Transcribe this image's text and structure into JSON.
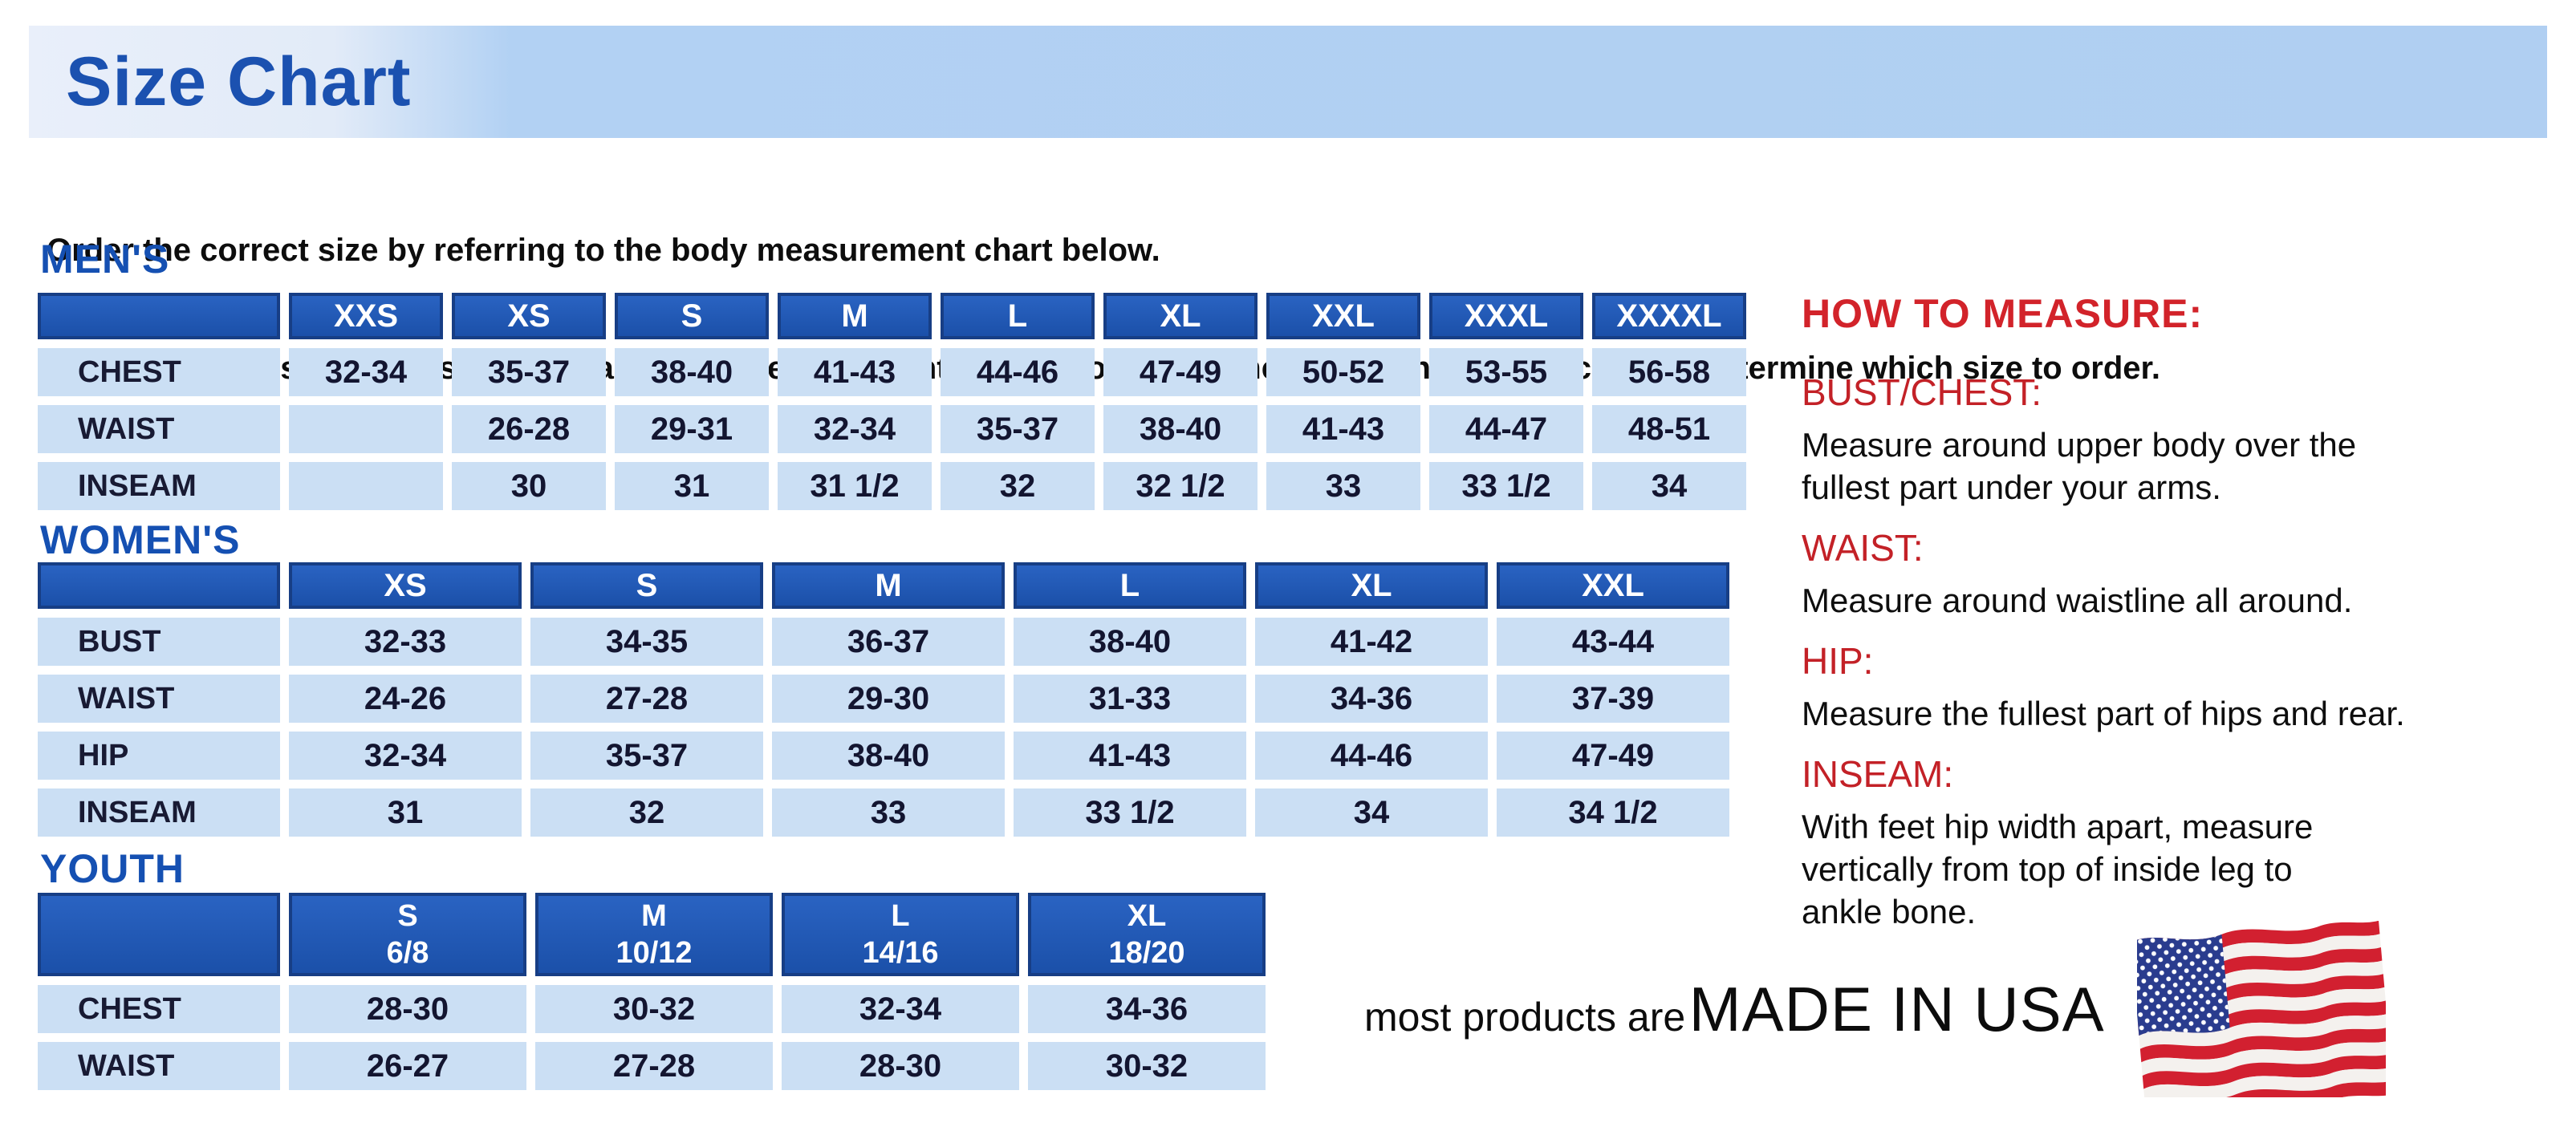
{
  "banner": {
    "title": "Size Chart"
  },
  "intro": {
    "line1": "Order the correct size by referring to the body measurement chart below.",
    "line2": "Measurements shown on size chart are body measurements.  Find your body measurements on the chart to determine which size to order."
  },
  "tables": {
    "mens": {
      "section_label": "MEN'S",
      "columns": [
        "XXS",
        "XS",
        "S",
        "M",
        "L",
        "XL",
        "XXL",
        "XXXL",
        "XXXXL"
      ],
      "rows": [
        {
          "label": "CHEST",
          "values": [
            "32-34",
            "35-37",
            "38-40",
            "41-43",
            "44-46",
            "47-49",
            "50-52",
            "53-55",
            "56-58"
          ]
        },
        {
          "label": "WAIST",
          "values": [
            "",
            "26-28",
            "29-31",
            "32-34",
            "35-37",
            "38-40",
            "41-43",
            "44-47",
            "48-51"
          ]
        },
        {
          "label": "INSEAM",
          "values": [
            "",
            "30",
            "31",
            "31 1/2",
            "32",
            "32 1/2",
            "33",
            "33 1/2",
            "34"
          ]
        }
      ]
    },
    "womens": {
      "section_label": "WOMEN'S",
      "columns": [
        "XS",
        "S",
        "M",
        "L",
        "XL",
        "XXL"
      ],
      "rows": [
        {
          "label": "BUST",
          "values": [
            "32-33",
            "34-35",
            "36-37",
            "38-40",
            "41-42",
            "43-44"
          ]
        },
        {
          "label": "WAIST",
          "values": [
            "24-26",
            "27-28",
            "29-30",
            "31-33",
            "34-36",
            "37-39"
          ]
        },
        {
          "label": "HIP",
          "values": [
            "32-34",
            "35-37",
            "38-40",
            "41-43",
            "44-46",
            "47-49"
          ]
        },
        {
          "label": "INSEAM",
          "values": [
            "31",
            "32",
            "33",
            "33 1/2",
            "34",
            "34 1/2"
          ]
        }
      ]
    },
    "youth": {
      "section_label": "YOUTH",
      "columns": [
        {
          "size": "S",
          "age": "6/8"
        },
        {
          "size": "M",
          "age": "10/12"
        },
        {
          "size": "L",
          "age": "14/16"
        },
        {
          "size": "XL",
          "age": "18/20"
        }
      ],
      "rows": [
        {
          "label": "CHEST",
          "values": [
            "28-30",
            "30-32",
            "32-34",
            "34-36"
          ]
        },
        {
          "label": "WAIST",
          "values": [
            "26-27",
            "27-28",
            "28-30",
            "30-32"
          ]
        }
      ]
    }
  },
  "how_to_measure": {
    "title": "HOW TO MEASURE:",
    "sections": [
      {
        "heading": "BUST/CHEST:",
        "text": "Measure around upper body over the\nfullest part under your arms."
      },
      {
        "heading": "WAIST:",
        "text": "Measure around waistline all around."
      },
      {
        "heading": "HIP:",
        "text": "Measure the fullest part of hips and rear."
      },
      {
        "heading": "INSEAM:",
        "text": "With feet hip width apart, measure\nvertically from top of inside leg to\nankle bone."
      }
    ]
  },
  "footer": {
    "prefix": "most products are",
    "made_in": "MADE IN USA",
    "flag_icon": "us-flag-icon"
  },
  "colors": {
    "banner_blue": "#b0cff2",
    "title_blue": "#1b51b0",
    "table_header_blue": "#1f57b0",
    "cell_blue": "#cbdff4",
    "heading_red": "#d2232a",
    "flag_red": "#d22030",
    "flag_blue": "#2a3c8e"
  }
}
